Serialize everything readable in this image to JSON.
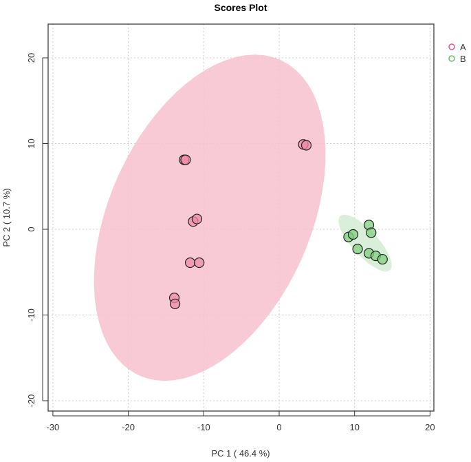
{
  "chart_data": {
    "type": "scatter",
    "title": "Scores Plot",
    "xlabel": "PC 1 ( 46.4 %)",
    "ylabel": "PC 2 ( 10.7 %)",
    "xlim": [
      -31,
      21
    ],
    "ylim": [
      -22.5,
      23.7
    ],
    "xticks": [
      -30,
      -20,
      -10,
      0,
      10,
      20
    ],
    "yticks": [
      -20,
      -10,
      0,
      10,
      20
    ],
    "grid": true,
    "legend_position": "top-right",
    "series": [
      {
        "name": "A",
        "color": "#e8557f",
        "fill": "#ef8aa6",
        "ellipse_color": "#f7c1cf",
        "ellipse": {
          "center": [
            -9.2,
            1.35
          ],
          "major": [
            10.5,
            17.85
          ],
          "minor_length": 13
        },
        "points": [
          [
            -12.6,
            8.1
          ],
          [
            -12.4,
            8.1
          ],
          [
            3.2,
            9.9
          ],
          [
            3.6,
            9.8
          ],
          [
            -11.4,
            0.9
          ],
          [
            -10.9,
            1.2
          ],
          [
            -11.8,
            -3.9
          ],
          [
            -10.6,
            -3.9
          ],
          [
            -13.9,
            -8.0
          ],
          [
            -13.8,
            -8.7
          ]
        ]
      },
      {
        "name": "B",
        "color": "#5fbf5f",
        "fill": "#7fcf7f",
        "ellipse_color": "#d3ecd3",
        "ellipse": {
          "center": [
            11.4,
            -1.6
          ],
          "major": [
            3.35,
            -3.1
          ],
          "minor_length": 1.6
        },
        "points": [
          [
            9.2,
            -0.9
          ],
          [
            9.8,
            -0.6
          ],
          [
            11.9,
            0.5
          ],
          [
            12.2,
            -0.4
          ],
          [
            10.4,
            -2.3
          ],
          [
            11.9,
            -2.8
          ],
          [
            12.8,
            -3.1
          ],
          [
            13.7,
            -3.5
          ]
        ]
      }
    ]
  }
}
